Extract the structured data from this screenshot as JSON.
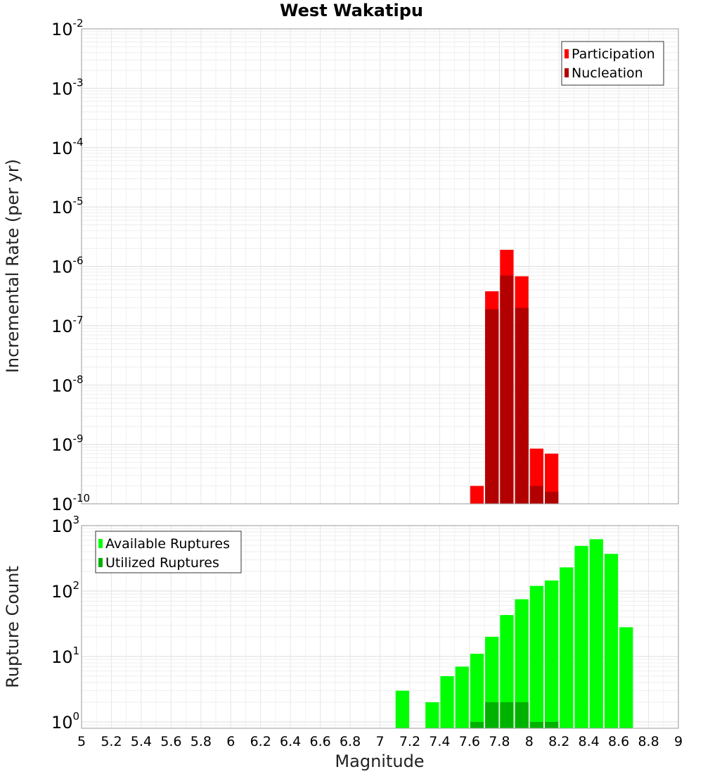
{
  "title": "West Wakatipu",
  "chart_data": [
    {
      "type": "bar",
      "name": "rate-panel",
      "ylabel": "Incremental Rate (per yr)",
      "yscale": "log",
      "ylim": [
        1e-10,
        0.01
      ],
      "y_ticks": [
        {
          "base": "10",
          "exp": "-2"
        },
        {
          "base": "10",
          "exp": "-3"
        },
        {
          "base": "10",
          "exp": "-4"
        },
        {
          "base": "10",
          "exp": "-5"
        },
        {
          "base": "10",
          "exp": "-6"
        },
        {
          "base": "10",
          "exp": "-7"
        },
        {
          "base": "10",
          "exp": "-8"
        },
        {
          "base": "10",
          "exp": "-9"
        },
        {
          "base": "10",
          "exp": "-10"
        }
      ],
      "bin_width": 0.1,
      "grid": true,
      "legend_position": "top-right",
      "series": [
        {
          "name": "Participation",
          "color": "#ff0000",
          "x": [
            7.65,
            7.75,
            7.85,
            7.95,
            8.05,
            8.15
          ],
          "values": [
            2e-10,
            3.8e-07,
            1.9e-06,
            6.8e-07,
            8.5e-10,
            7e-10
          ]
        },
        {
          "name": "Nucleation",
          "color": "#b20000",
          "x": [
            7.75,
            7.85,
            7.95,
            8.05,
            8.15
          ],
          "values": [
            1.9e-07,
            7e-07,
            2e-07,
            2e-10,
            1.6e-10
          ]
        }
      ]
    },
    {
      "type": "bar",
      "name": "count-panel",
      "ylabel": "Rupture Count",
      "xlabel": "Magnitude",
      "yscale": "log",
      "ylim": [
        0.8,
        1000
      ],
      "xlim": [
        5,
        9
      ],
      "x_ticks": [
        "5",
        "5.2",
        "5.4",
        "5.6",
        "5.8",
        "6",
        "6.2",
        "6.4",
        "6.6",
        "6.8",
        "7",
        "7.2",
        "7.4",
        "7.6",
        "7.8",
        "8",
        "8.2",
        "8.4",
        "8.6",
        "8.8",
        "9"
      ],
      "y_ticks": [
        {
          "base": "10",
          "exp": "3"
        },
        {
          "base": "10",
          "exp": "2"
        },
        {
          "base": "10",
          "exp": "1"
        },
        {
          "base": "10",
          "exp": "0"
        }
      ],
      "bin_width": 0.1,
      "grid": true,
      "legend_position": "top-left",
      "series": [
        {
          "name": "Available Ruptures",
          "color": "#00ff00",
          "x": [
            7.15,
            7.35,
            7.45,
            7.55,
            7.65,
            7.75,
            7.85,
            7.95,
            8.05,
            8.15,
            8.25,
            8.35,
            8.45,
            8.55,
            8.65
          ],
          "values": [
            3,
            2,
            5,
            7,
            11,
            20,
            43,
            75,
            120,
            145,
            230,
            490,
            620,
            370,
            28
          ]
        },
        {
          "name": "Utilized Ruptures",
          "color": "#00b200",
          "x": [
            7.65,
            7.75,
            7.85,
            7.95,
            8.05,
            8.15
          ],
          "values": [
            1,
            2,
            2,
            2,
            1,
            1
          ]
        }
      ]
    }
  ]
}
